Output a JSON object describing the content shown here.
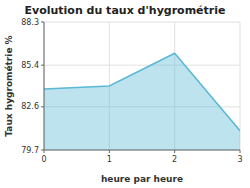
{
  "chart_data": {
    "type": "area",
    "title": "Evolution du taux d'hygrométrie",
    "x_label": "heure par heure",
    "y_label": "Taux hygrométrie %",
    "x": [
      0,
      1,
      2,
      3
    ],
    "values": [
      83.8,
      84.0,
      86.2,
      81.0
    ],
    "color": "#5bb8d4",
    "xlim": [
      0,
      3
    ],
    "ylim": [
      79.7,
      88.3
    ],
    "xticks": [
      0,
      1,
      2,
      3
    ],
    "yticks": [
      79.7,
      82.6,
      85.4,
      88.3
    ],
    "grid": true
  }
}
